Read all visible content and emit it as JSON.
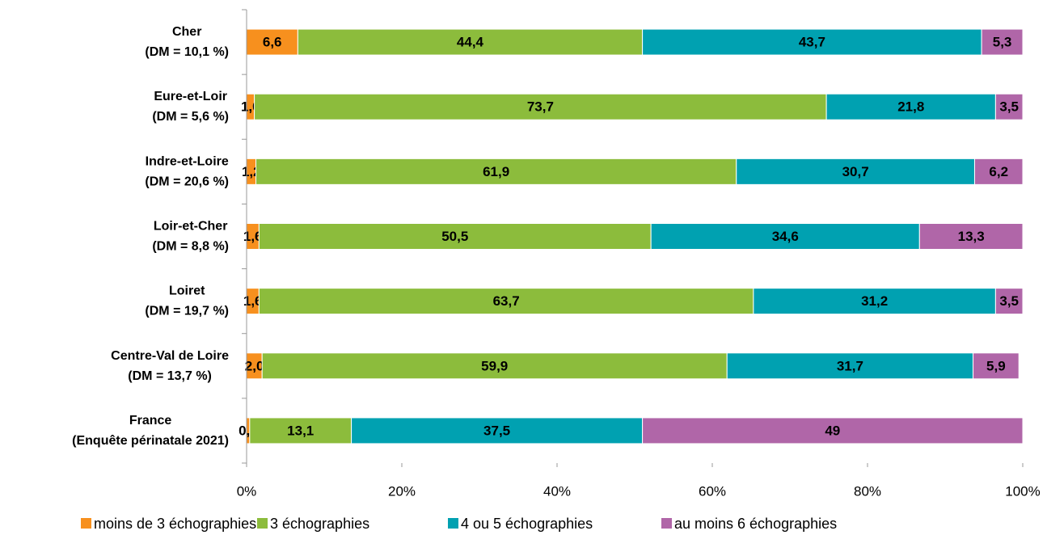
{
  "chart_data": {
    "type": "stacked_bar_horizontal",
    "categories": [
      [
        "Cher",
        "(DM = 10,1 %)"
      ],
      [
        "Eure-et-Loir",
        "(DM = 5,6 %)"
      ],
      [
        "Indre-et-Loire",
        "(DM = 20,6 %)"
      ],
      [
        "Loir-et-Cher",
        "(DM = 8,8 %)"
      ],
      [
        "Loiret",
        "(DM = 19,7 %)"
      ],
      [
        "Centre-Val de Loire",
        "(DM = 13,7 %)"
      ],
      [
        "France",
        "(Enquête périnatale 2021)"
      ]
    ],
    "series": [
      {
        "name": "moins de 3 échographies",
        "color": "#f7901e",
        "values": [
          6.6,
          1.0,
          1.2,
          1.6,
          1.6,
          2.0,
          0.4
        ],
        "value_labels": [
          "6,6",
          "1,0",
          "1,2",
          "1,6",
          "1,6",
          "2,0",
          "0,4"
        ]
      },
      {
        "name": "3 échographies",
        "color": "#8cbc3c",
        "values": [
          44.4,
          73.7,
          61.9,
          50.5,
          63.7,
          59.9,
          13.1
        ],
        "value_labels": [
          "44,4",
          "73,7",
          "61,9",
          "50,5",
          "63,7",
          "59,9",
          "13,1"
        ]
      },
      {
        "name": "4 ou 5 échographies",
        "color": "#00a1b1",
        "values": [
          43.7,
          21.8,
          30.7,
          34.6,
          31.2,
          31.7,
          37.5
        ],
        "value_labels": [
          "43,7",
          "21,8",
          "30,7",
          "34,6",
          "31,2",
          "31,7",
          "37,5"
        ]
      },
      {
        "name": "au moins 6 échographies",
        "color": "#b066a8",
        "values": [
          5.3,
          3.5,
          6.2,
          13.3,
          3.5,
          5.9,
          49
        ],
        "value_labels": [
          "5,3",
          "3,5",
          "6,2",
          "13,3",
          "3,5",
          "5,9",
          "49"
        ]
      }
    ],
    "xlim": [
      0,
      100
    ],
    "xticks": [
      {
        "value": 0,
        "label": "0%"
      },
      {
        "value": 20,
        "label": "20%"
      },
      {
        "value": 40,
        "label": "40%"
      },
      {
        "value": 60,
        "label": "60%"
      },
      {
        "value": 80,
        "label": "80%"
      },
      {
        "value": 100,
        "label": "100%"
      }
    ],
    "legend": "bottom"
  }
}
